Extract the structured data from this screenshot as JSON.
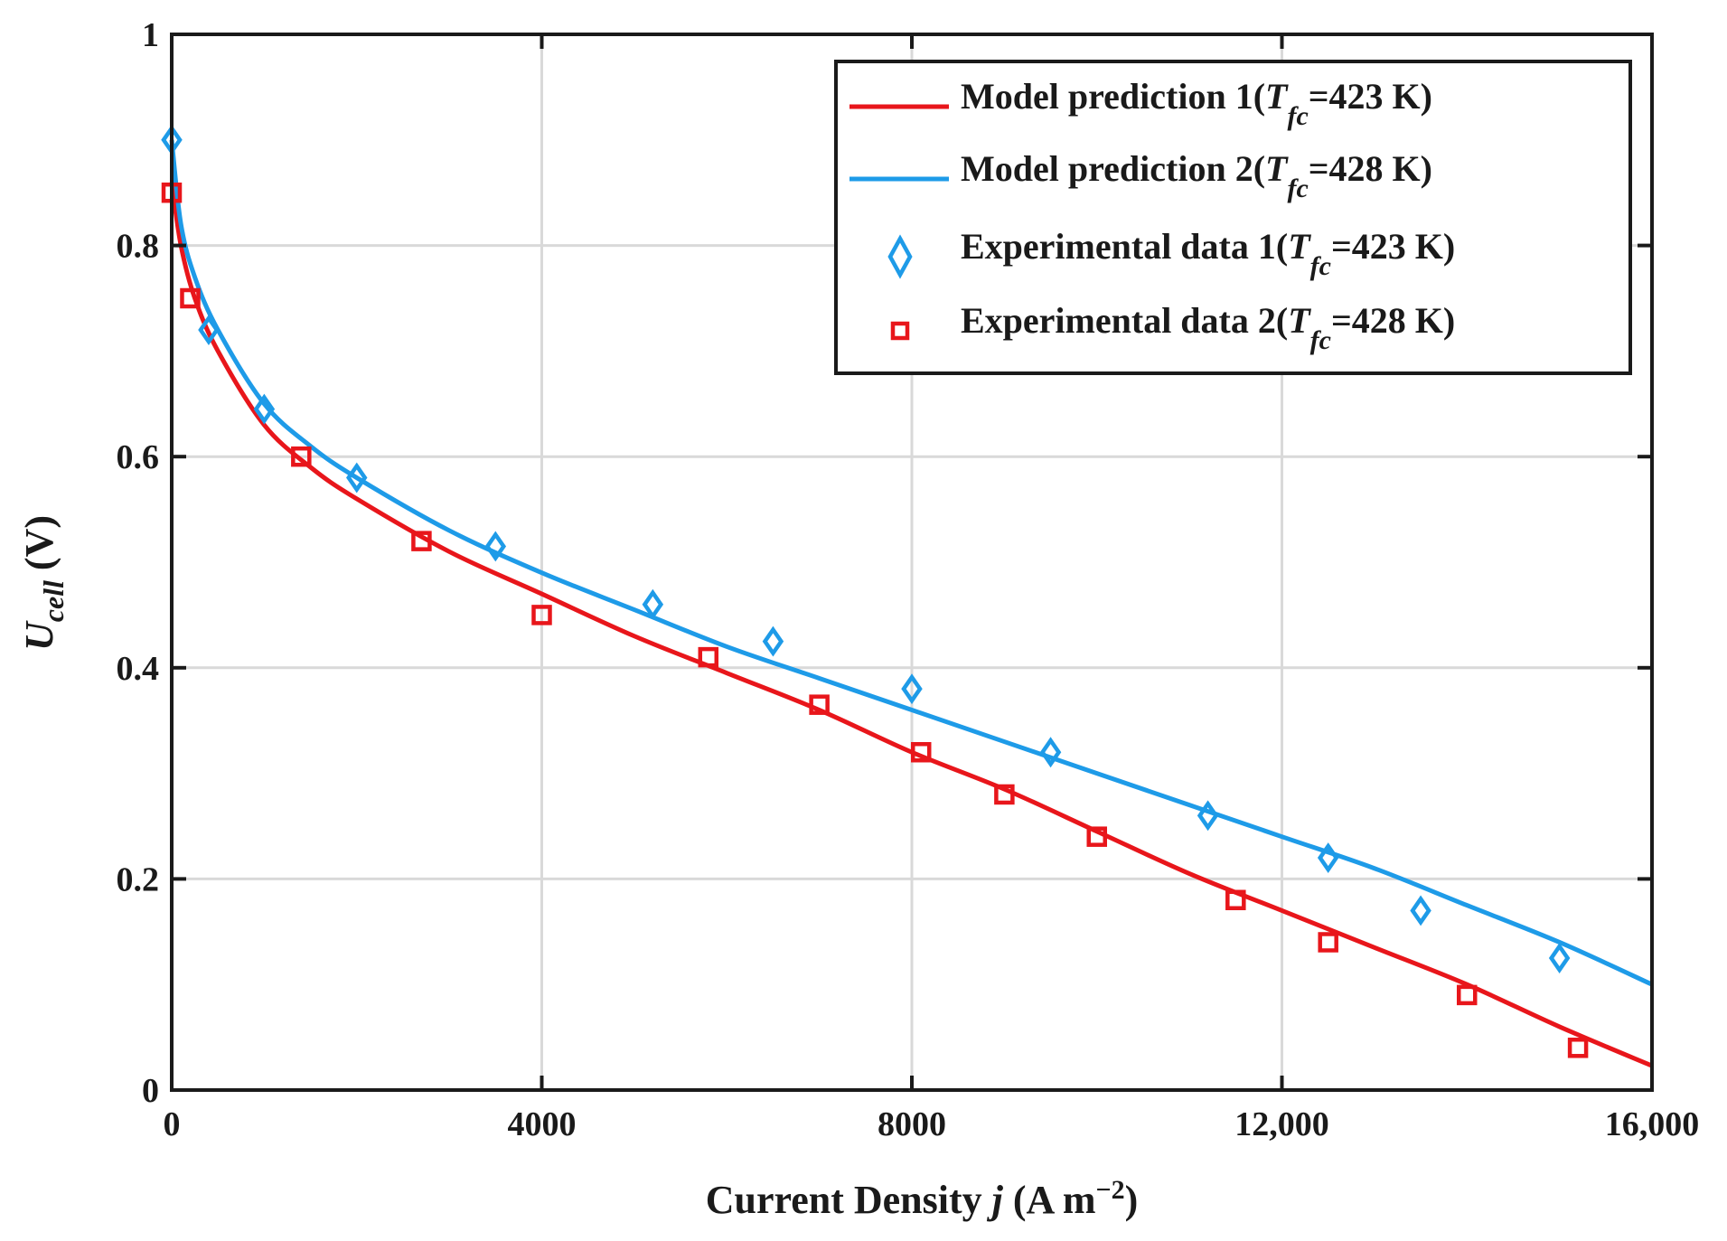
{
  "chart_data": {
    "type": "line",
    "title": "",
    "xlabel": {
      "prefix": "Current Density ",
      "var": "j",
      "unit_open": " (A m",
      "exp": "−2",
      "unit_close": ")"
    },
    "ylabel": {
      "sym": "U",
      "sub": "cell",
      "unit": " (V)"
    },
    "xlim": [
      0,
      16000
    ],
    "ylim": [
      0,
      1
    ],
    "xticks": [
      0,
      4000,
      8000,
      12000,
      16000
    ],
    "xtick_labels": [
      "0",
      "4000",
      "8000",
      "12,000",
      "16,000"
    ],
    "yticks": [
      0,
      0.2,
      0.4,
      0.6,
      0.8,
      1
    ],
    "ytick_labels": [
      "0",
      "0.2",
      "0.4",
      "0.6",
      "0.8",
      "1"
    ],
    "grid": true,
    "legend_position": "top-right",
    "colors": {
      "red": "#e8161b",
      "blue": "#1e9be8",
      "axis": "#1a1a1a",
      "grid": "#d9d9d9"
    },
    "series": [
      {
        "name": "Model prediction 1",
        "legend": {
          "prefix": "Model prediction 1(",
          "sym": "T",
          "sub": "fc",
          "suffix": "=423 K)"
        },
        "kind": "line",
        "color": "#e8161b",
        "x": [
          0,
          100,
          250,
          500,
          1000,
          1500,
          2000,
          3000,
          4000,
          5000,
          6000,
          7000,
          8000,
          9000,
          10000,
          11000,
          12000,
          13000,
          14000,
          15000,
          16000
        ],
        "y": [
          0.86,
          0.8,
          0.75,
          0.7,
          0.63,
          0.59,
          0.56,
          0.51,
          0.47,
          0.43,
          0.395,
          0.36,
          0.32,
          0.285,
          0.245,
          0.205,
          0.17,
          0.135,
          0.1,
          0.06,
          0.023
        ]
      },
      {
        "name": "Model prediction 2",
        "legend": {
          "prefix": "Model prediction 2(",
          "sym": "T",
          "sub": "fc",
          "suffix": "=428 K)"
        },
        "kind": "line",
        "color": "#1e9be8",
        "x": [
          0,
          100,
          250,
          500,
          1000,
          1500,
          2000,
          3000,
          4000,
          5000,
          6000,
          7000,
          8000,
          9000,
          10000,
          11000,
          12000,
          13000,
          14000,
          15000,
          16000
        ],
        "y": [
          0.9,
          0.82,
          0.77,
          0.72,
          0.65,
          0.61,
          0.58,
          0.53,
          0.49,
          0.455,
          0.42,
          0.39,
          0.36,
          0.33,
          0.3,
          0.27,
          0.24,
          0.21,
          0.175,
          0.14,
          0.1
        ]
      },
      {
        "name": "Experimental data 1",
        "legend": {
          "prefix": "Experimental data 1(",
          "sym": "T",
          "sub": "fc",
          "suffix": "=423 K)"
        },
        "kind": "scatter",
        "marker": "diamond",
        "color": "#1e9be8",
        "x": [
          0,
          400,
          1000,
          2000,
          3500,
          5200,
          6500,
          8000,
          9500,
          11200,
          12500,
          13500,
          15000
        ],
        "y": [
          0.9,
          0.72,
          0.645,
          0.58,
          0.515,
          0.46,
          0.425,
          0.38,
          0.32,
          0.26,
          0.22,
          0.17,
          0.125
        ]
      },
      {
        "name": "Experimental data 2",
        "legend": {
          "prefix": "Experimental data  2(",
          "sym": "T",
          "sub": "fc",
          "suffix": "=428 K)"
        },
        "kind": "scatter",
        "marker": "square",
        "color": "#e8161b",
        "x": [
          0,
          200,
          1400,
          2700,
          4000,
          5800,
          7000,
          8100,
          9000,
          10000,
          11500,
          12500,
          14000,
          15200
        ],
        "y": [
          0.85,
          0.75,
          0.6,
          0.52,
          0.45,
          0.41,
          0.365,
          0.32,
          0.28,
          0.24,
          0.18,
          0.14,
          0.09,
          0.04
        ]
      }
    ]
  }
}
